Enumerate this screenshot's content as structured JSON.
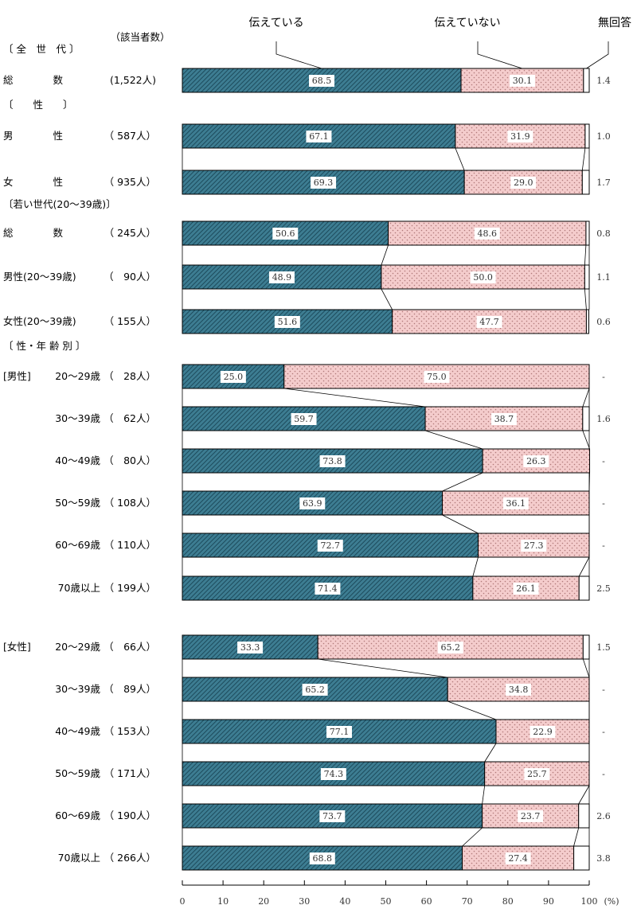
{
  "chart_data": {
    "type": "bar",
    "orientation": "horizontal",
    "stacked": true,
    "unit": "(%)",
    "xlim": [
      0,
      100
    ],
    "xticks": [
      "0",
      "10",
      "20",
      "30",
      "40",
      "50",
      "60",
      "70",
      "80",
      "90",
      "100"
    ],
    "count_header": "（該当者数）",
    "series": [
      {
        "name": "伝えている",
        "color": "#2e6b80",
        "pattern": "diagonal-hatch"
      },
      {
        "name": "伝えていない",
        "color": "#f2c9c9",
        "pattern": "dots"
      },
      {
        "name": "無回答",
        "color": "#ffffff",
        "pattern": "none"
      }
    ],
    "sections": [
      {
        "header": "〔 全　世　代 〕"
      },
      {
        "header": "〔　　性　　〕"
      },
      {
        "header": "〔若い世代(20〜39歳)〕"
      },
      {
        "header": "〔 性・年 齢 別 〕"
      }
    ],
    "rows": [
      {
        "label": "総　　　　数",
        "count": "(1,522人)",
        "values": [
          68.5,
          30.1,
          1.4
        ],
        "texts": [
          "68.5",
          "30.1",
          "1.4"
        ]
      },
      {
        "label": "男　　　　性",
        "count": "（ 587人）",
        "values": [
          67.1,
          31.9,
          1.0
        ],
        "texts": [
          "67.1",
          "31.9",
          "1.0"
        ]
      },
      {
        "label": "女　　　　性",
        "count": "（ 935人）",
        "values": [
          69.3,
          29.0,
          1.7
        ],
        "texts": [
          "69.3",
          "29.0",
          "1.7"
        ]
      },
      {
        "label": "総　　　　数",
        "count": "（ 245人）",
        "values": [
          50.6,
          48.6,
          0.8
        ],
        "texts": [
          "50.6",
          "48.6",
          "0.8"
        ]
      },
      {
        "label": "男性(20〜39歳)",
        "count": "（　90人）",
        "values": [
          48.9,
          50.0,
          1.1
        ],
        "texts": [
          "48.9",
          "50.0",
          "1.1"
        ]
      },
      {
        "label": "女性(20〜39歳)",
        "count": "（ 155人）",
        "values": [
          51.6,
          47.7,
          0.6
        ],
        "texts": [
          "51.6",
          "47.7",
          "0.6"
        ]
      },
      {
        "group": "[男性]",
        "label": "20〜29歳",
        "count": "（　28人）",
        "values": [
          25.0,
          75.0,
          0
        ],
        "texts": [
          "25.0",
          "75.0",
          "-"
        ]
      },
      {
        "label": "30〜39歳",
        "count": "（　62人）",
        "values": [
          59.7,
          38.7,
          1.6
        ],
        "texts": [
          "59.7",
          "38.7",
          "1.6"
        ]
      },
      {
        "label": "40〜49歳",
        "count": "（　80人）",
        "values": [
          73.8,
          26.3,
          0
        ],
        "texts": [
          "73.8",
          "26.3",
          "-"
        ]
      },
      {
        "label": "50〜59歳",
        "count": "（ 108人）",
        "values": [
          63.9,
          36.1,
          0
        ],
        "texts": [
          "63.9",
          "36.1",
          "-"
        ]
      },
      {
        "label": "60〜69歳",
        "count": "（ 110人）",
        "values": [
          72.7,
          27.3,
          0
        ],
        "texts": [
          "72.7",
          "27.3",
          "-"
        ]
      },
      {
        "label": "70歳以上",
        "count": "（ 199人）",
        "values": [
          71.4,
          26.1,
          2.5
        ],
        "texts": [
          "71.4",
          "26.1",
          "2.5"
        ]
      },
      {
        "group": "[女性]",
        "label": "20〜29歳",
        "count": "（　66人）",
        "values": [
          33.3,
          65.2,
          1.5
        ],
        "texts": [
          "33.3",
          "65.2",
          "1.5"
        ]
      },
      {
        "label": "30〜39歳",
        "count": "（　89人）",
        "values": [
          65.2,
          34.8,
          0
        ],
        "texts": [
          "65.2",
          "34.8",
          "-"
        ]
      },
      {
        "label": "40〜49歳",
        "count": "（ 153人）",
        "values": [
          77.1,
          22.9,
          0
        ],
        "texts": [
          "77.1",
          "22.9",
          "-"
        ]
      },
      {
        "label": "50〜59歳",
        "count": "（ 171人）",
        "values": [
          74.3,
          25.7,
          0
        ],
        "texts": [
          "74.3",
          "25.7",
          "-"
        ]
      },
      {
        "label": "60〜69歳",
        "count": "（ 190人）",
        "values": [
          73.7,
          23.7,
          2.6
        ],
        "texts": [
          "73.7",
          "23.7",
          "2.6"
        ]
      },
      {
        "label": "70歳以上",
        "count": "（ 266人）",
        "values": [
          68.8,
          27.4,
          3.8
        ],
        "texts": [
          "68.8",
          "27.4",
          "3.8"
        ]
      }
    ]
  }
}
